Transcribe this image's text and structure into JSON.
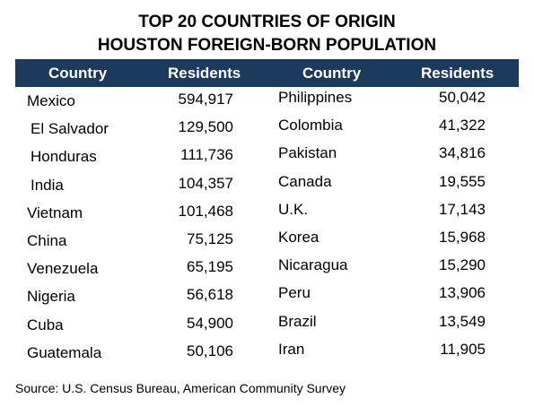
{
  "title": {
    "line1": "TOP 20 COUNTRIES OF ORIGIN",
    "line2": "HOUSTON FOREIGN-BORN POPULATION"
  },
  "header": {
    "country_left": "Country",
    "residents_left": "Residents",
    "country_right": "Country",
    "residents_right": "Residents"
  },
  "left_rows": [
    {
      "country": "Mexico",
      "residents": "594,917"
    },
    {
      "country": "El Salvador",
      "residents": "129,500"
    },
    {
      "country": "Honduras",
      "residents": "111,736"
    },
    {
      "country": "India",
      "residents": "104,357"
    },
    {
      "country": "Vietnam",
      "residents": "101,468"
    },
    {
      "country": "China",
      "residents": "75,125"
    },
    {
      "country": "Venezuela",
      "residents": "65,195"
    },
    {
      "country": "Nigeria",
      "residents": "56,618"
    },
    {
      "country": "Cuba",
      "residents": "54,900"
    },
    {
      "country": "Guatemala",
      "residents": "50,106"
    }
  ],
  "right_rows": [
    {
      "country": "Philippines",
      "residents": "50,042"
    },
    {
      "country": "Colombia",
      "residents": "41,322"
    },
    {
      "country": "Pakistan",
      "residents": "34,816"
    },
    {
      "country": "Canada",
      "residents": "19,555"
    },
    {
      "country": "U.K.",
      "residents": "17,143"
    },
    {
      "country": "Korea",
      "residents": "15,968"
    },
    {
      "country": "Nicaragua",
      "residents": "15,290"
    },
    {
      "country": "Peru",
      "residents": "13,906"
    },
    {
      "country": "Brazil",
      "residents": "13,549"
    },
    {
      "country": "Iran",
      "residents": "11,905"
    }
  ],
  "source": "Source: U.S. Census Bureau, American Community Survey",
  "colors": {
    "header_bg": "#1b3a5c",
    "header_text": "#ffffff"
  }
}
